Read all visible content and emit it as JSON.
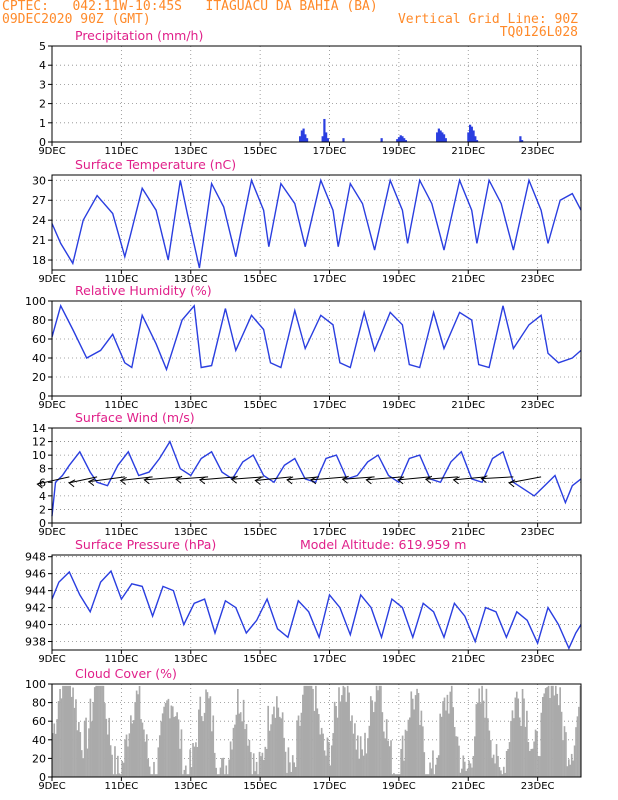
{
  "header": {
    "source_line": "CPTEC:   042:11W-10:45S   ITAGUACU DA BAHIA (BA)",
    "date_line": "09DEC2020 90Z (GMT)",
    "grid_line": "Vertical Grid Line: 90Z",
    "code": "TQ0126L028"
  },
  "colors": {
    "header": "#ff8a2a",
    "panel_title": "#e0208a",
    "series": "#2a3ee0",
    "bars": "#aaaaaa",
    "grid": "#8a8a8a"
  },
  "x_axis": {
    "ticks": [
      "9DEC",
      "11DEC",
      "13DEC",
      "15DEC",
      "17DEC",
      "19DEC",
      "21DEC",
      "23DEC"
    ],
    "tick_days": [
      9,
      11,
      13,
      15,
      17,
      19,
      21,
      23
    ],
    "start_day": 9,
    "end_day": 24.25
  },
  "chart_data": [
    {
      "type": "bar",
      "title": "Precipitation (mm/h)",
      "ylim": [
        0,
        5
      ],
      "yticks": [
        0,
        1,
        2,
        3,
        4,
        5
      ],
      "x": [
        16.15,
        16.2,
        16.25,
        16.3,
        16.35,
        16.8,
        16.85,
        16.9,
        16.95,
        17.4,
        18.5,
        18.95,
        19.0,
        19.05,
        19.1,
        19.15,
        19.2,
        20.1,
        20.15,
        20.2,
        20.25,
        20.3,
        20.35,
        21.0,
        21.05,
        21.1,
        21.15,
        21.2,
        21.25,
        22.5,
        22.55
      ],
      "values": [
        0.3,
        0.6,
        0.7,
        0.4,
        0.2,
        0.3,
        1.2,
        0.5,
        0.2,
        0.2,
        0.2,
        0.15,
        0.25,
        0.35,
        0.3,
        0.2,
        0.1,
        0.5,
        0.7,
        0.6,
        0.5,
        0.4,
        0.2,
        0.5,
        0.9,
        0.8,
        0.6,
        0.3,
        0.1,
        0.3,
        0.1
      ]
    },
    {
      "type": "line",
      "title": "Surface Temperature (nC)",
      "ylim": [
        16.5,
        30.8
      ],
      "yticks": [
        18,
        21,
        24,
        27,
        30
      ],
      "x": [
        9.0,
        9.25,
        9.6,
        9.9,
        10.3,
        10.75,
        11.1,
        11.25,
        11.6,
        12.0,
        12.35,
        12.7,
        12.9,
        13.25,
        13.6,
        13.95,
        14.3,
        14.75,
        15.1,
        15.25,
        15.6,
        16.0,
        16.3,
        16.75,
        17.1,
        17.25,
        17.6,
        17.95,
        18.3,
        18.75,
        19.1,
        19.25,
        19.6,
        19.95,
        20.3,
        20.75,
        21.1,
        21.25,
        21.6,
        21.95,
        22.3,
        22.75,
        23.1,
        23.3,
        23.65,
        24.0,
        24.25
      ],
      "values": [
        23.5,
        20.5,
        17.5,
        24.0,
        27.7,
        25.0,
        18.5,
        21.5,
        28.8,
        25.5,
        18.0,
        30.0,
        25.0,
        16.8,
        29.5,
        26.0,
        18.5,
        30.0,
        25.5,
        20.0,
        29.5,
        26.5,
        20.0,
        30.0,
        25.5,
        20.0,
        29.5,
        26.5,
        19.5,
        30.0,
        25.5,
        20.5,
        30.0,
        26.5,
        19.5,
        30.0,
        25.5,
        20.5,
        30.0,
        26.5,
        19.5,
        30.0,
        25.5,
        20.5,
        27.0,
        28.0,
        25.5
      ]
    },
    {
      "type": "line",
      "title": "Relative Humidity (%)",
      "ylim": [
        0,
        100
      ],
      "yticks": [
        0,
        20,
        40,
        60,
        80,
        100
      ],
      "x": [
        9.0,
        9.25,
        9.6,
        10.0,
        10.4,
        10.75,
        11.1,
        11.3,
        11.6,
        12.0,
        12.3,
        12.75,
        13.1,
        13.3,
        13.6,
        14.0,
        14.3,
        14.75,
        15.1,
        15.3,
        15.6,
        16.0,
        16.3,
        16.75,
        17.1,
        17.3,
        17.6,
        18.0,
        18.3,
        18.75,
        19.1,
        19.3,
        19.6,
        20.0,
        20.3,
        20.75,
        21.1,
        21.3,
        21.6,
        22.0,
        22.3,
        22.75,
        23.1,
        23.3,
        23.6,
        24.0,
        24.25
      ],
      "values": [
        62,
        95,
        70,
        40,
        48,
        65,
        35,
        30,
        85,
        55,
        28,
        80,
        95,
        30,
        32,
        92,
        48,
        85,
        70,
        35,
        30,
        90,
        50,
        85,
        75,
        35,
        30,
        88,
        48,
        88,
        75,
        33,
        30,
        88,
        50,
        88,
        80,
        33,
        30,
        95,
        50,
        75,
        85,
        45,
        35,
        40,
        48
      ]
    },
    {
      "type": "line",
      "title": "Surface Wind (m/s)",
      "ylim": [
        0,
        14
      ],
      "yticks": [
        0,
        2,
        4,
        6,
        8,
        10,
        12,
        14
      ],
      "x": [
        9.0,
        9.1,
        9.3,
        9.5,
        9.8,
        10.1,
        10.3,
        10.6,
        10.9,
        11.2,
        11.5,
        11.8,
        12.1,
        12.4,
        12.7,
        13.0,
        13.3,
        13.6,
        13.9,
        14.2,
        14.5,
        14.8,
        15.1,
        15.4,
        15.7,
        16.0,
        16.3,
        16.6,
        16.9,
        17.2,
        17.5,
        17.8,
        18.1,
        18.4,
        18.7,
        19.0,
        19.3,
        19.6,
        19.9,
        20.2,
        20.5,
        20.8,
        21.1,
        21.4,
        21.7,
        22.0,
        22.3,
        22.6,
        22.9,
        23.2,
        23.5,
        23.8,
        24.0,
        24.25
      ],
      "values": [
        1.0,
        6.0,
        7.0,
        8.5,
        10.5,
        7.5,
        6.0,
        5.5,
        8.5,
        10.5,
        7.0,
        7.5,
        9.5,
        12.0,
        8.0,
        7.0,
        9.5,
        10.5,
        7.5,
        6.5,
        9.0,
        10.0,
        7.0,
        6.0,
        8.5,
        9.5,
        6.5,
        6.0,
        9.5,
        10.0,
        6.5,
        7.0,
        9.0,
        10.0,
        7.0,
        6.0,
        9.5,
        10.0,
        6.5,
        6.0,
        9.0,
        10.5,
        6.5,
        6.0,
        9.5,
        10.5,
        6.0,
        5.0,
        4.0,
        5.5,
        7.0,
        3.0,
        5.5,
        6.5
      ],
      "arrow_x": [
        9.5,
        10.3,
        11.1,
        11.9,
        12.7,
        13.5,
        14.3,
        15.1,
        15.9,
        16.7,
        17.5,
        18.3,
        19.1,
        19.9,
        20.7,
        21.5,
        22.3,
        23.1
      ],
      "arrow_dx": [
        -0.8,
        -0.7,
        -0.9,
        -0.8,
        -0.9,
        -0.8,
        -0.9,
        -0.8,
        -0.9,
        -0.8,
        -0.9,
        -0.8,
        -0.9,
        -0.8,
        -0.8,
        -0.8,
        -0.8,
        -0.8
      ],
      "arrow_dy": [
        -1.2,
        -1.0,
        -0.8,
        -0.6,
        -0.5,
        -0.4,
        -0.5,
        -0.4,
        -0.6,
        -0.5,
        -0.5,
        -0.4,
        -0.5,
        -0.5,
        -0.4,
        -0.5,
        -0.3,
        -1.0
      ]
    },
    {
      "type": "line",
      "title": "Surface Pressure (hPa)",
      "annotation": "Model Altitude: 619.959 m",
      "ylim": [
        937.0,
        948.2
      ],
      "yticks": [
        938,
        940,
        942,
        944,
        946,
        948
      ],
      "x": [
        9.0,
        9.2,
        9.5,
        9.8,
        10.1,
        10.4,
        10.7,
        11.0,
        11.3,
        11.6,
        11.9,
        12.2,
        12.5,
        12.8,
        13.1,
        13.4,
        13.7,
        14.0,
        14.3,
        14.6,
        14.9,
        15.2,
        15.5,
        15.8,
        16.1,
        16.4,
        16.7,
        17.0,
        17.3,
        17.6,
        17.9,
        18.2,
        18.5,
        18.8,
        19.1,
        19.4,
        19.7,
        20.0,
        20.3,
        20.6,
        20.9,
        21.2,
        21.5,
        21.8,
        22.1,
        22.4,
        22.7,
        23.0,
        23.3,
        23.6,
        23.9,
        24.1,
        24.25
      ],
      "values": [
        943.0,
        945.0,
        946.2,
        943.5,
        941.5,
        945.0,
        946.3,
        943.0,
        944.8,
        944.5,
        941.0,
        944.5,
        944.0,
        940.0,
        942.5,
        943.0,
        939.0,
        942.8,
        942.0,
        939.0,
        940.5,
        943.0,
        939.5,
        938.5,
        942.8,
        941.5,
        938.5,
        943.5,
        942.0,
        938.8,
        943.5,
        942.0,
        938.5,
        943.0,
        942.0,
        938.5,
        942.5,
        941.5,
        938.5,
        942.5,
        941.0,
        938.0,
        942.0,
        941.5,
        938.5,
        941.5,
        940.5,
        937.8,
        942.0,
        940.0,
        937.2,
        939.0,
        940.0
      ]
    },
    {
      "type": "bar",
      "title": "Cloud Cover (%)",
      "ylim": [
        0,
        100
      ],
      "yticks": [
        0,
        20,
        40,
        60,
        80,
        100
      ]
    }
  ]
}
